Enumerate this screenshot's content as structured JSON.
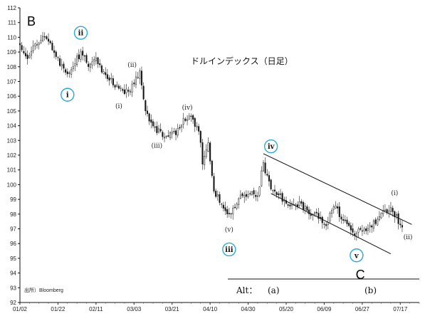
{
  "chart_data": {
    "type": "candlestick",
    "title": "ドルインデックス（日足）",
    "source": "出所）Bloomberg",
    "xlabel": "",
    "ylabel": "",
    "ylim": [
      92,
      112
    ],
    "y_ticks": [
      92,
      93,
      94,
      95,
      96,
      97,
      98,
      99,
      100,
      101,
      102,
      103,
      104,
      105,
      106,
      107,
      108,
      109,
      110,
      111,
      112
    ],
    "x_tick_labels": [
      "01/02",
      "01/22",
      "02/11",
      "03/03",
      "03/21",
      "04/10",
      "04/30",
      "05/20",
      "06/09",
      "06/27",
      "07/17"
    ],
    "grid": false,
    "series_points": [
      [
        0,
        109.5
      ],
      [
        4,
        108.6
      ],
      [
        8,
        109.6
      ],
      [
        12,
        110.0
      ],
      [
        16,
        109.4
      ],
      [
        21,
        108.2
      ],
      [
        25,
        107.3
      ],
      [
        28,
        108.0
      ],
      [
        32,
        109.0
      ],
      [
        36,
        108.0
      ],
      [
        40,
        108.5
      ],
      [
        44,
        107.5
      ],
      [
        48,
        107.0
      ],
      [
        52,
        106.5
      ],
      [
        56,
        106.3
      ],
      [
        60,
        106.8
      ],
      [
        63,
        107.8
      ],
      [
        66,
        105.0
      ],
      [
        70,
        103.8
      ],
      [
        74,
        103.5
      ],
      [
        78,
        103.3
      ],
      [
        82,
        103.6
      ],
      [
        86,
        104.4
      ],
      [
        90,
        104.5
      ],
      [
        94,
        103.8
      ],
      [
        96,
        101.5
      ],
      [
        99,
        102.8
      ],
      [
        102,
        99.5
      ],
      [
        106,
        98.8
      ],
      [
        110,
        98.0
      ],
      [
        113,
        98.6
      ],
      [
        117,
        99.3
      ],
      [
        121,
        99.5
      ],
      [
        125,
        99.2
      ],
      [
        128,
        101.5
      ],
      [
        130,
        100.5
      ],
      [
        133,
        99.6
      ],
      [
        137,
        99.2
      ],
      [
        141,
        98.6
      ],
      [
        145,
        98.8
      ],
      [
        149,
        98.5
      ],
      [
        153,
        98.0
      ],
      [
        157,
        97.8
      ],
      [
        161,
        97.3
      ],
      [
        165,
        98.7
      ],
      [
        168,
        98.0
      ],
      [
        172,
        97.3
      ],
      [
        176,
        96.7
      ],
      [
        180,
        96.9
      ],
      [
        184,
        97.2
      ],
      [
        188,
        97.6
      ],
      [
        192,
        98.2
      ],
      [
        195,
        98.5
      ],
      [
        197,
        98.0
      ],
      [
        199,
        97.5
      ],
      [
        201,
        97.3
      ]
    ],
    "wave_labels": [
      {
        "text": "B",
        "style": "big",
        "day": 6,
        "value": 110.8
      },
      {
        "text": "ii",
        "style": "circle",
        "day": 32,
        "value": 110.3
      },
      {
        "text": "i",
        "style": "circle",
        "day": 25,
        "value": 106.1
      },
      {
        "text": "(ii)",
        "style": "plain",
        "day": 59,
        "value": 108.0
      },
      {
        "text": "(i)",
        "style": "plain",
        "day": 52,
        "value": 105.2
      },
      {
        "text": "(iii)",
        "style": "plain",
        "day": 72,
        "value": 102.5
      },
      {
        "text": "(iv)",
        "style": "plain",
        "day": 88,
        "value": 105.1
      },
      {
        "text": "iv",
        "style": "circle",
        "day": 132,
        "value": 102.6
      },
      {
        "text": "(v)",
        "style": "plain",
        "day": 110,
        "value": 96.8
      },
      {
        "text": "iii",
        "style": "circle",
        "day": 110,
        "value": 95.6
      },
      {
        "text": "(i)",
        "style": "plain",
        "day": 197,
        "value": 99.3
      },
      {
        "text": "(ii)",
        "style": "plain",
        "day": 204,
        "value": 96.3
      },
      {
        "text": "v",
        "style": "circle",
        "day": 177,
        "value": 95.2
      },
      {
        "text": "C",
        "style": "big",
        "day": 179,
        "value": 93.6
      }
    ],
    "channel_lines": [
      {
        "from": [
          128,
          102.1
        ],
        "to": [
          206,
          97.3
        ]
      },
      {
        "from": [
          132,
          99.4
        ],
        "to": [
          195,
          95.3
        ]
      }
    ],
    "alt_legend": {
      "label": "Alt：",
      "a": "(a)",
      "b": "(b)"
    }
  }
}
